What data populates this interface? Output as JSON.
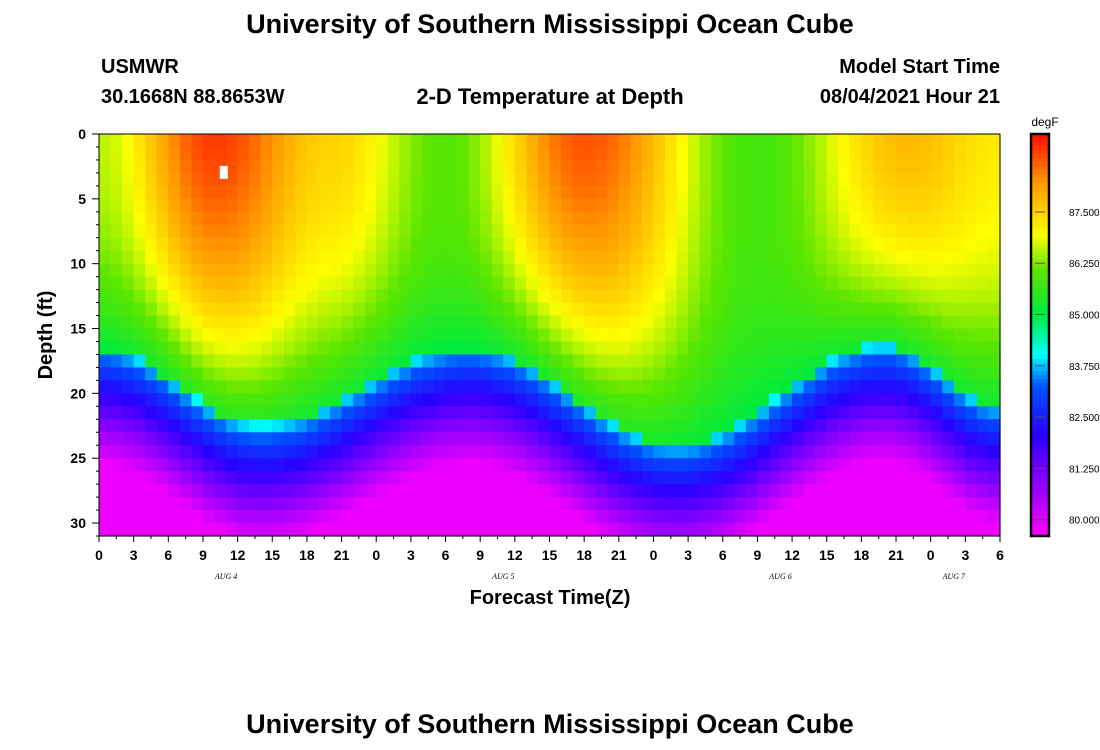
{
  "header": {
    "title_top": "University of Southern Mississippi Ocean Cube",
    "title_bottom": "University of Southern Mississippi Ocean Cube",
    "station": "USMWR",
    "location": "30.1668N  88.8653W",
    "plot_title": "2-D Temperature at Depth",
    "model_start_label": "Model Start Time",
    "model_start_value": "08/04/2021 Hour 21"
  },
  "chart_data": {
    "type": "heatmap",
    "title": "2-D Temperature at Depth",
    "xlabel": "Forecast Time(Z)",
    "ylabel": "Depth (ft)",
    "x_range_hours": [
      0,
      78
    ],
    "x_ticks": [
      "0",
      "3",
      "6",
      "9",
      "12",
      "15",
      "18",
      "21",
      "0",
      "3",
      "6",
      "9",
      "12",
      "15",
      "18",
      "21",
      "0",
      "3",
      "6",
      "9",
      "12",
      "15",
      "18",
      "21",
      "0",
      "3",
      "6"
    ],
    "day_labels": [
      {
        "text": "AUG 4",
        "hour": 11
      },
      {
        "text": "AUG 5",
        "hour": 35
      },
      {
        "text": "AUG 6",
        "hour": 59
      },
      {
        "text": "AUG 7",
        "hour": 74
      }
    ],
    "y_ticks": [
      0,
      5,
      10,
      15,
      20,
      25,
      30
    ],
    "ylim": [
      0,
      31
    ],
    "y_inverted": true,
    "colorbar": {
      "unit": "degF",
      "min": 79.6,
      "max": 89.4,
      "tick_values": [
        80.0,
        81.25,
        82.5,
        83.75,
        85.0,
        86.25,
        87.5
      ],
      "tick_labels": [
        "80.000",
        "81.250",
        "82.500",
        "83.750",
        "85.000",
        "86.250",
        "87.500"
      ]
    },
    "thermocline_depth_ft": [
      {
        "hour": 0,
        "depth": 16.5
      },
      {
        "hour": 14,
        "depth": 22.5
      },
      {
        "hour": 32,
        "depth": 16.5
      },
      {
        "hour": 50,
        "depth": 24.0
      },
      {
        "hour": 68,
        "depth": 16.3
      },
      {
        "hour": 78,
        "depth": 21.0
      }
    ],
    "surface_temperature_degF": [
      {
        "hour": 0,
        "value": 86.6
      },
      {
        "hour": 10,
        "value": 89.0
      },
      {
        "hour": 20,
        "value": 87.5
      },
      {
        "hour": 30,
        "value": 86.0
      },
      {
        "hour": 42,
        "value": 88.8
      },
      {
        "hour": 57,
        "value": 85.8
      },
      {
        "hour": 70,
        "value": 87.8
      },
      {
        "hour": 78,
        "value": 87.2
      }
    ],
    "marker": {
      "hour": 10.8,
      "depth_ft": 3.0,
      "color": "#ffffff"
    }
  }
}
